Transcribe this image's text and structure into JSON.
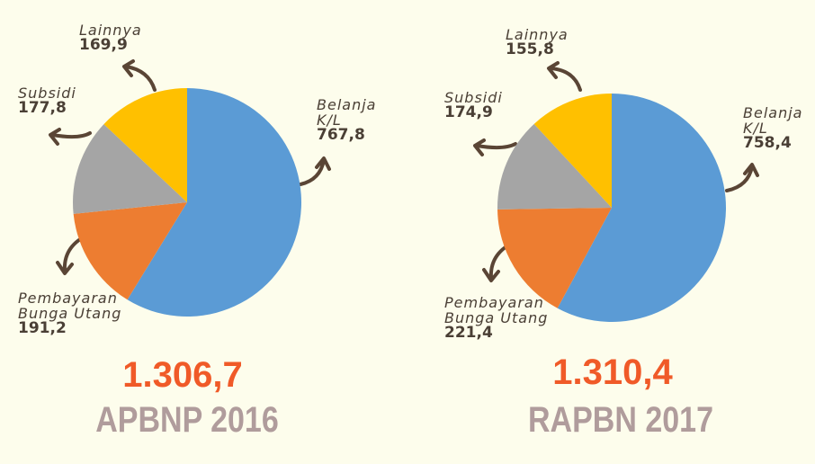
{
  "chart_data": [
    {
      "type": "pie",
      "title": "APBNP 2016",
      "total": "1.306,7",
      "categories": [
        "Belanja K/L",
        "Pembayaran Bunga Utang",
        "Subsidi",
        "Lainnya"
      ],
      "values": [
        767.8,
        191.2,
        177.8,
        169.9
      ],
      "value_labels": [
        "767,8",
        "191,2",
        "177,8",
        "169,9"
      ],
      "colors": [
        "#5b9bd5",
        "#ed7d31",
        "#a5a5a5",
        "#ffc000"
      ]
    },
    {
      "type": "pie",
      "title": "RAPBN 2017",
      "total": "1.310,4",
      "categories": [
        "Belanja K/L",
        "Pembayaran Bunga Utang",
        "Subsidi",
        "Lainnya"
      ],
      "values": [
        758.4,
        221.4,
        174.9,
        155.8
      ],
      "value_labels": [
        "758,4",
        "221,4",
        "174,9",
        "155,8"
      ],
      "colors": [
        "#5b9bd5",
        "#ed7d31",
        "#a5a5a5",
        "#ffc000"
      ]
    }
  ]
}
